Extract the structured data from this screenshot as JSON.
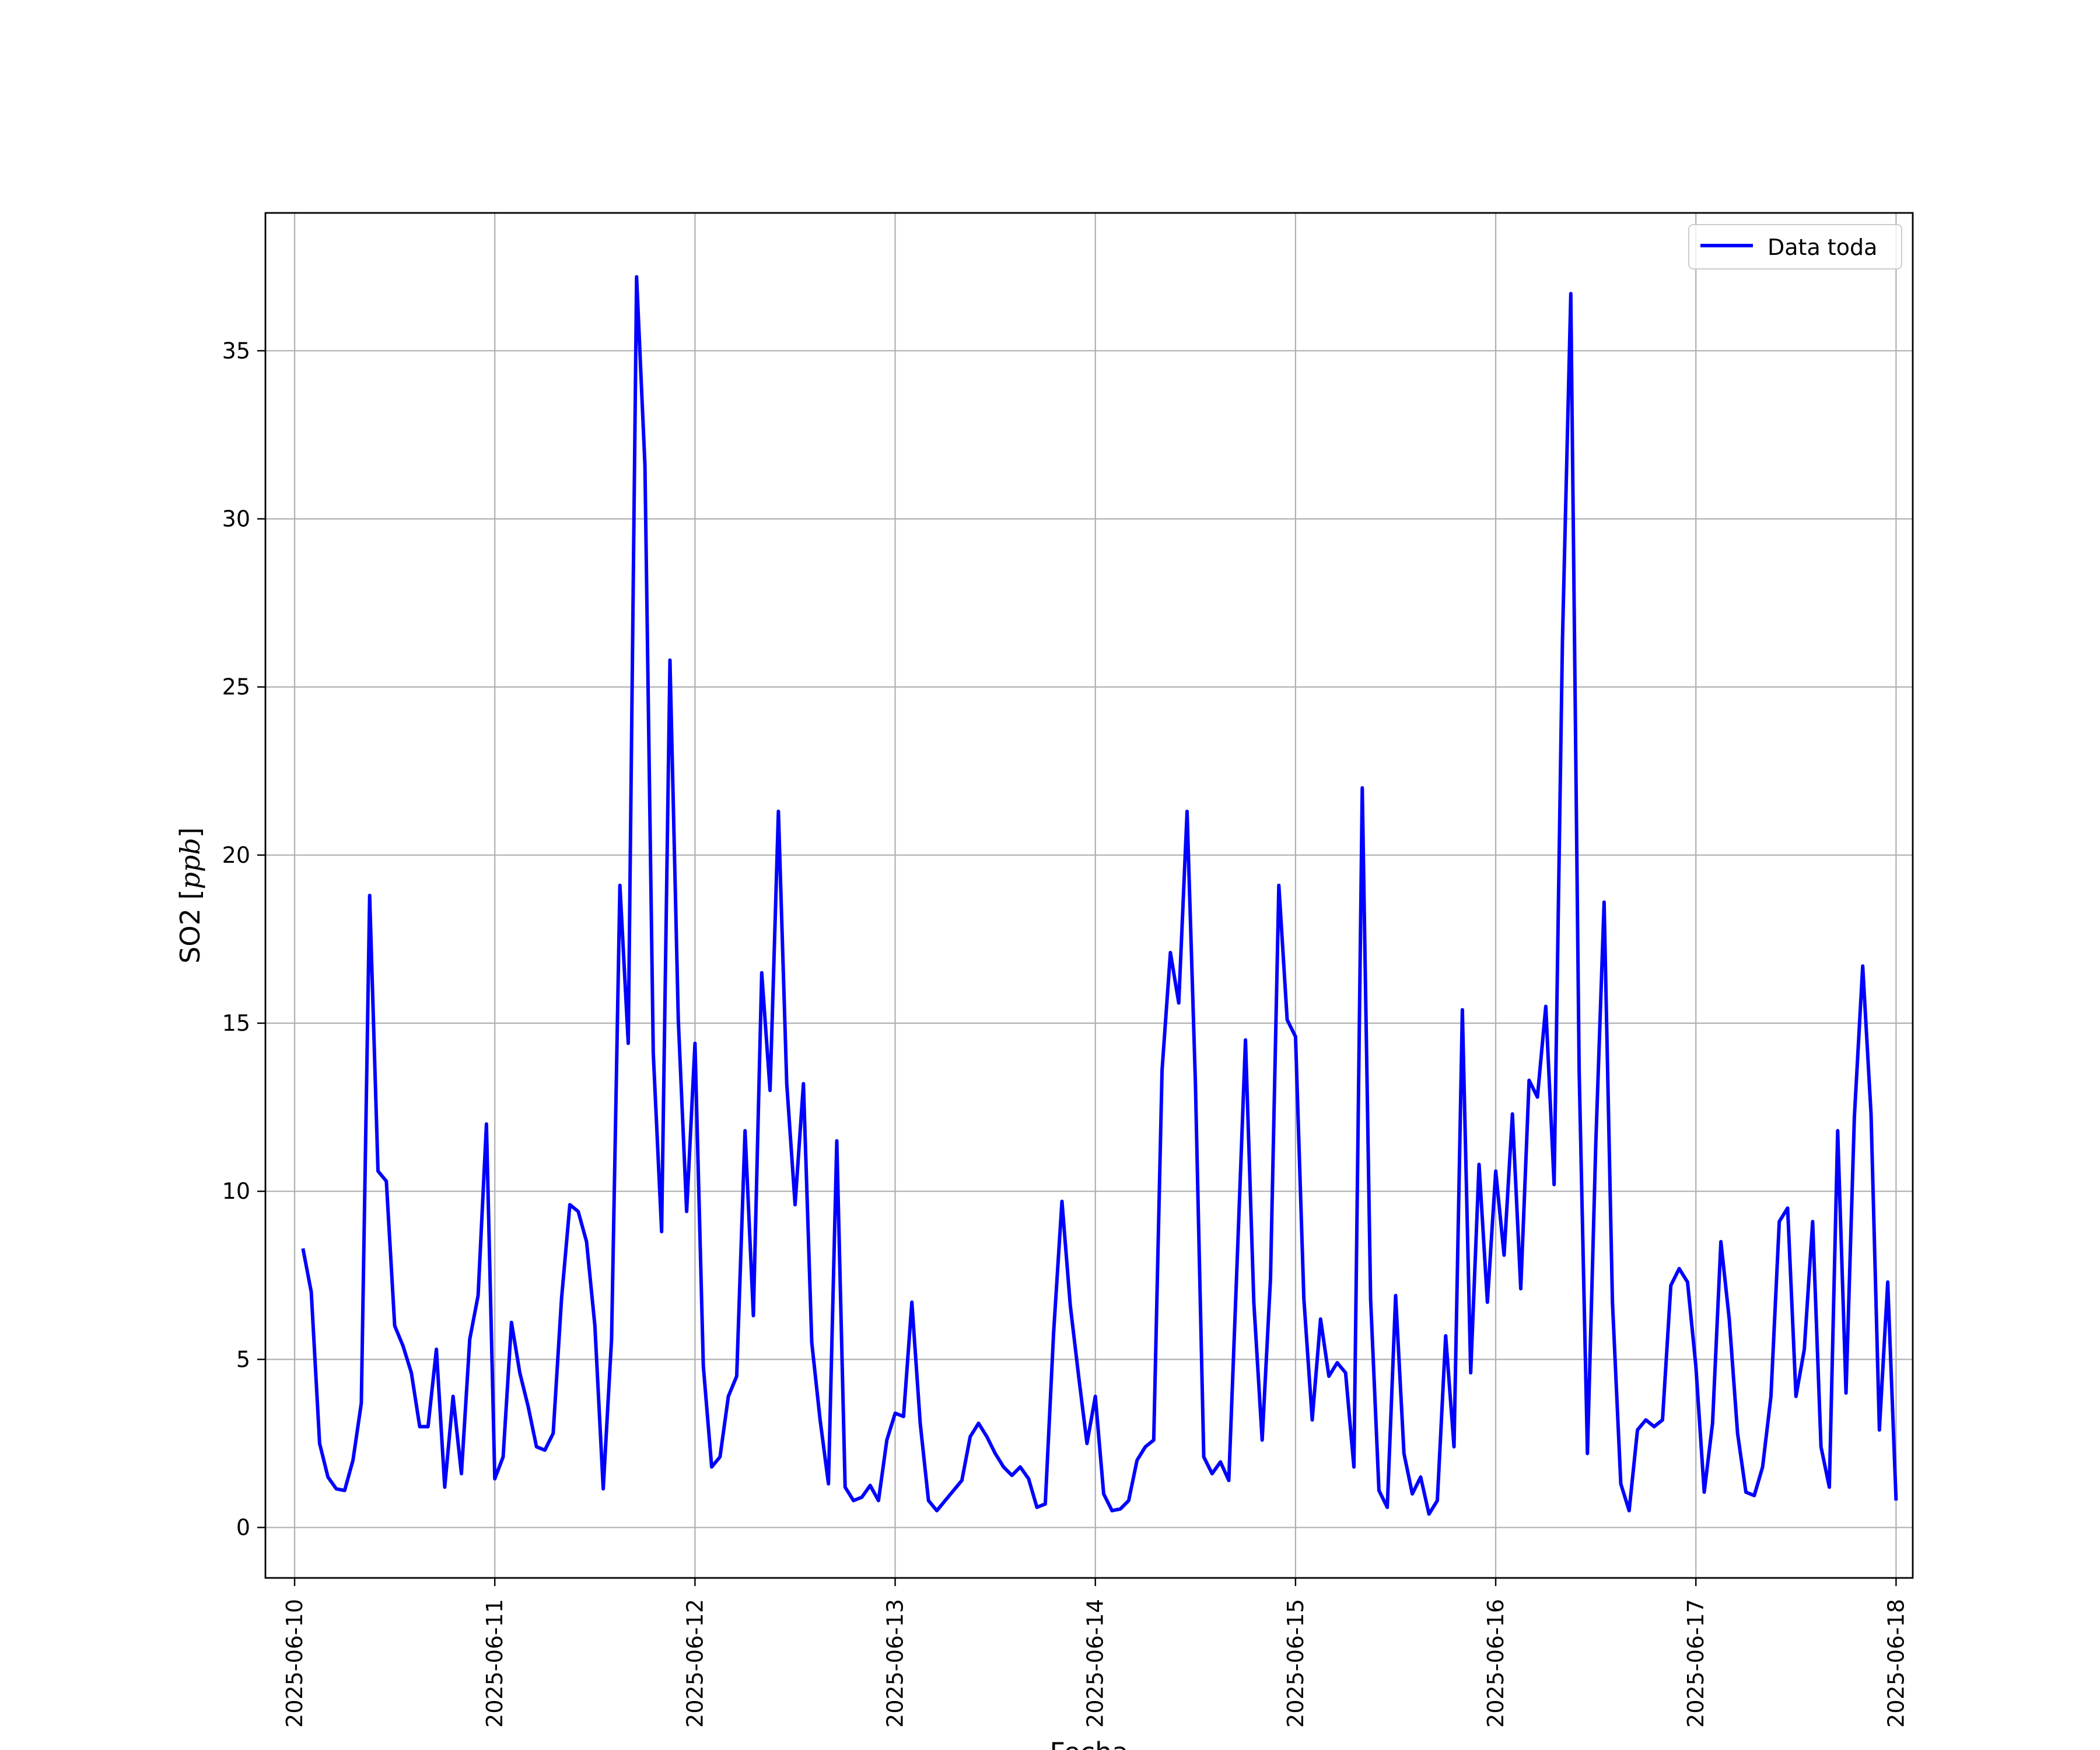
{
  "chart_data": {
    "type": "line",
    "title": "",
    "xlabel": "Fecha",
    "ylabel_main": "SO2 [",
    "ylabel_unit": "ppb",
    "ylabel_close": "]",
    "xlim": [
      "2025-06-09 20:30",
      "2025-06-18 02:00"
    ],
    "ylim": [
      -1.5,
      39.1
    ],
    "grid": true,
    "legend_position": "top-right",
    "x_ticks": [
      "2025-06-10",
      "2025-06-11",
      "2025-06-12",
      "2025-06-13",
      "2025-06-14",
      "2025-06-15",
      "2025-06-16",
      "2025-06-17",
      "2025-06-18"
    ],
    "y_ticks": [
      0,
      5,
      10,
      15,
      20,
      25,
      30,
      35
    ],
    "y_tick_labels": [
      "0",
      "5",
      "10",
      "15",
      "20",
      "25",
      "30",
      "35"
    ],
    "colors": {
      "series": "#0000ff",
      "grid": "#b0b0b0",
      "axes": "#000000"
    },
    "series": [
      {
        "name": "Data toda",
        "x": [
          "2025-06-10 01:00",
          "2025-06-10 02:00",
          "2025-06-10 03:00",
          "2025-06-10 04:00",
          "2025-06-10 05:00",
          "2025-06-10 06:00",
          "2025-06-10 07:00",
          "2025-06-10 08:00",
          "2025-06-10 09:00",
          "2025-06-10 10:00",
          "2025-06-10 11:00",
          "2025-06-10 12:00",
          "2025-06-10 13:00",
          "2025-06-10 14:00",
          "2025-06-10 15:00",
          "2025-06-10 16:00",
          "2025-06-10 17:00",
          "2025-06-10 18:00",
          "2025-06-10 19:00",
          "2025-06-10 20:00",
          "2025-06-10 21:00",
          "2025-06-10 22:00",
          "2025-06-10 23:00",
          "2025-06-11 00:00",
          "2025-06-11 01:00",
          "2025-06-11 02:00",
          "2025-06-11 03:00",
          "2025-06-11 04:00",
          "2025-06-11 05:00",
          "2025-06-11 06:00",
          "2025-06-11 07:00",
          "2025-06-11 08:00",
          "2025-06-11 09:00",
          "2025-06-11 10:00",
          "2025-06-11 11:00",
          "2025-06-11 12:00",
          "2025-06-11 13:00",
          "2025-06-11 14:00",
          "2025-06-11 15:00",
          "2025-06-11 16:00",
          "2025-06-11 17:00",
          "2025-06-11 18:00",
          "2025-06-11 19:00",
          "2025-06-11 20:00",
          "2025-06-11 21:00",
          "2025-06-11 22:00",
          "2025-06-11 23:00",
          "2025-06-12 00:00",
          "2025-06-12 01:00",
          "2025-06-12 02:00",
          "2025-06-12 03:00",
          "2025-06-12 04:00",
          "2025-06-12 05:00",
          "2025-06-12 06:00",
          "2025-06-12 07:00",
          "2025-06-12 08:00",
          "2025-06-12 09:00",
          "2025-06-12 10:00",
          "2025-06-12 11:00",
          "2025-06-12 12:00",
          "2025-06-12 13:00",
          "2025-06-12 14:00",
          "2025-06-12 15:00",
          "2025-06-12 16:00",
          "2025-06-12 17:00",
          "2025-06-12 18:00",
          "2025-06-12 19:00",
          "2025-06-12 20:00",
          "2025-06-12 21:00",
          "2025-06-12 22:00",
          "2025-06-12 23:00",
          "2025-06-13 00:00",
          "2025-06-13 01:00",
          "2025-06-13 02:00",
          "2025-06-13 03:00",
          "2025-06-13 04:00",
          "2025-06-13 05:00",
          "2025-06-13 06:00",
          "2025-06-13 07:00",
          "2025-06-13 08:00",
          "2025-06-13 09:00",
          "2025-06-13 10:00",
          "2025-06-13 11:00",
          "2025-06-13 12:00",
          "2025-06-13 13:00",
          "2025-06-13 14:00",
          "2025-06-13 15:00",
          "2025-06-13 16:00",
          "2025-06-13 17:00",
          "2025-06-13 18:00",
          "2025-06-13 19:00",
          "2025-06-13 20:00",
          "2025-06-13 21:00",
          "2025-06-13 22:00",
          "2025-06-13 23:00",
          "2025-06-14 00:00",
          "2025-06-14 01:00",
          "2025-06-14 02:00",
          "2025-06-14 03:00",
          "2025-06-14 04:00",
          "2025-06-14 05:00",
          "2025-06-14 06:00",
          "2025-06-14 07:00",
          "2025-06-14 08:00",
          "2025-06-14 09:00",
          "2025-06-14 10:00",
          "2025-06-14 11:00",
          "2025-06-14 12:00",
          "2025-06-14 13:00",
          "2025-06-14 14:00",
          "2025-06-14 15:00",
          "2025-06-14 16:00",
          "2025-06-14 17:00",
          "2025-06-14 18:00",
          "2025-06-14 19:00",
          "2025-06-14 20:00",
          "2025-06-14 21:00",
          "2025-06-14 22:00",
          "2025-06-14 23:00",
          "2025-06-15 00:00",
          "2025-06-15 01:00",
          "2025-06-15 02:00",
          "2025-06-15 03:00",
          "2025-06-15 04:00",
          "2025-06-15 05:00",
          "2025-06-15 06:00",
          "2025-06-15 07:00",
          "2025-06-15 08:00",
          "2025-06-15 09:00",
          "2025-06-15 10:00",
          "2025-06-15 11:00",
          "2025-06-15 12:00",
          "2025-06-15 13:00",
          "2025-06-15 14:00",
          "2025-06-15 15:00",
          "2025-06-15 16:00",
          "2025-06-15 17:00",
          "2025-06-15 18:00",
          "2025-06-15 19:00",
          "2025-06-15 20:00",
          "2025-06-15 21:00",
          "2025-06-15 22:00",
          "2025-06-15 23:00",
          "2025-06-16 00:00",
          "2025-06-16 01:00",
          "2025-06-16 02:00",
          "2025-06-16 03:00",
          "2025-06-16 04:00",
          "2025-06-16 05:00",
          "2025-06-16 06:00",
          "2025-06-16 07:00",
          "2025-06-16 08:00",
          "2025-06-16 09:00",
          "2025-06-16 10:00",
          "2025-06-16 11:00",
          "2025-06-16 12:00",
          "2025-06-16 13:00",
          "2025-06-16 14:00",
          "2025-06-16 15:00",
          "2025-06-16 16:00",
          "2025-06-16 17:00",
          "2025-06-16 18:00",
          "2025-06-16 19:00",
          "2025-06-16 20:00",
          "2025-06-16 21:00",
          "2025-06-16 22:00",
          "2025-06-16 23:00",
          "2025-06-17 00:00",
          "2025-06-17 01:00",
          "2025-06-17 02:00",
          "2025-06-17 03:00",
          "2025-06-17 04:00",
          "2025-06-17 05:00",
          "2025-06-17 06:00",
          "2025-06-17 07:00",
          "2025-06-17 08:00",
          "2025-06-17 09:00",
          "2025-06-17 10:00",
          "2025-06-17 11:00",
          "2025-06-17 12:00",
          "2025-06-17 13:00",
          "2025-06-17 14:00",
          "2025-06-17 15:00",
          "2025-06-17 16:00",
          "2025-06-17 17:00",
          "2025-06-17 18:00",
          "2025-06-17 19:00",
          "2025-06-17 20:00",
          "2025-06-17 21:00",
          "2025-06-17 22:00",
          "2025-06-17 23:00",
          "2025-06-18 00:00"
        ],
        "values": [
          8.3,
          7.0,
          2.5,
          1.5,
          1.15,
          1.1,
          2.0,
          3.7,
          18.8,
          10.6,
          10.3,
          6.0,
          5.4,
          4.6,
          3.0,
          3.0,
          5.3,
          1.2,
          3.9,
          1.6,
          5.6,
          6.9,
          12.0,
          1.45,
          2.1,
          6.1,
          4.6,
          3.6,
          2.4,
          2.3,
          2.8,
          6.8,
          9.6,
          9.4,
          8.5,
          6.0,
          1.15,
          5.6,
          19.1,
          14.4,
          37.2,
          31.6,
          14.1,
          8.8,
          25.8,
          15.1,
          9.4,
          14.4,
          4.8,
          1.8,
          2.1,
          3.9,
          4.5,
          11.8,
          6.3,
          16.5,
          13.0,
          21.3,
          13.2,
          9.6,
          13.2,
          5.5,
          3.2,
          1.3,
          11.5,
          1.2,
          0.8,
          0.9,
          1.25,
          0.8,
          2.6,
          3.4,
          3.3,
          6.7,
          3.1,
          0.8,
          0.5,
          0.8,
          1.1,
          1.4,
          2.7,
          3.1,
          2.7,
          2.2,
          1.8,
          1.55,
          1.8,
          1.45,
          0.6,
          0.7,
          5.8,
          9.7,
          6.6,
          4.5,
          2.5,
          3.9,
          1.0,
          0.5,
          0.55,
          0.8,
          2.0,
          2.4,
          2.6,
          13.6,
          17.1,
          15.6,
          21.3,
          13.2,
          2.1,
          1.6,
          1.95,
          1.4,
          7.9,
          14.5,
          6.7,
          2.6,
          7.4,
          19.1,
          15.1,
          14.6,
          6.8,
          3.2,
          6.2,
          4.5,
          4.9,
          4.6,
          1.8,
          22.0,
          6.8,
          1.1,
          0.6,
          6.9,
          2.2,
          1.0,
          1.5,
          0.4,
          0.8,
          5.7,
          2.4,
          15.4,
          4.6,
          10.8,
          6.7,
          10.6,
          8.1,
          12.3,
          7.1,
          13.3,
          12.8,
          15.5,
          10.2,
          26.4,
          36.7,
          13.6,
          2.2,
          11.4,
          18.6,
          6.7,
          1.3,
          0.5,
          2.9,
          3.2,
          3.0,
          3.2,
          7.2,
          7.7,
          7.3,
          4.8,
          1.05,
          3.1,
          8.5,
          6.2,
          2.8,
          1.05,
          0.95,
          1.8,
          3.9,
          9.1,
          9.5,
          3.9,
          5.3,
          9.1,
          2.4,
          1.2,
          11.8,
          4.0,
          12.2,
          16.7,
          12.3,
          2.9,
          7.3,
          0.8
        ]
      }
    ]
  }
}
